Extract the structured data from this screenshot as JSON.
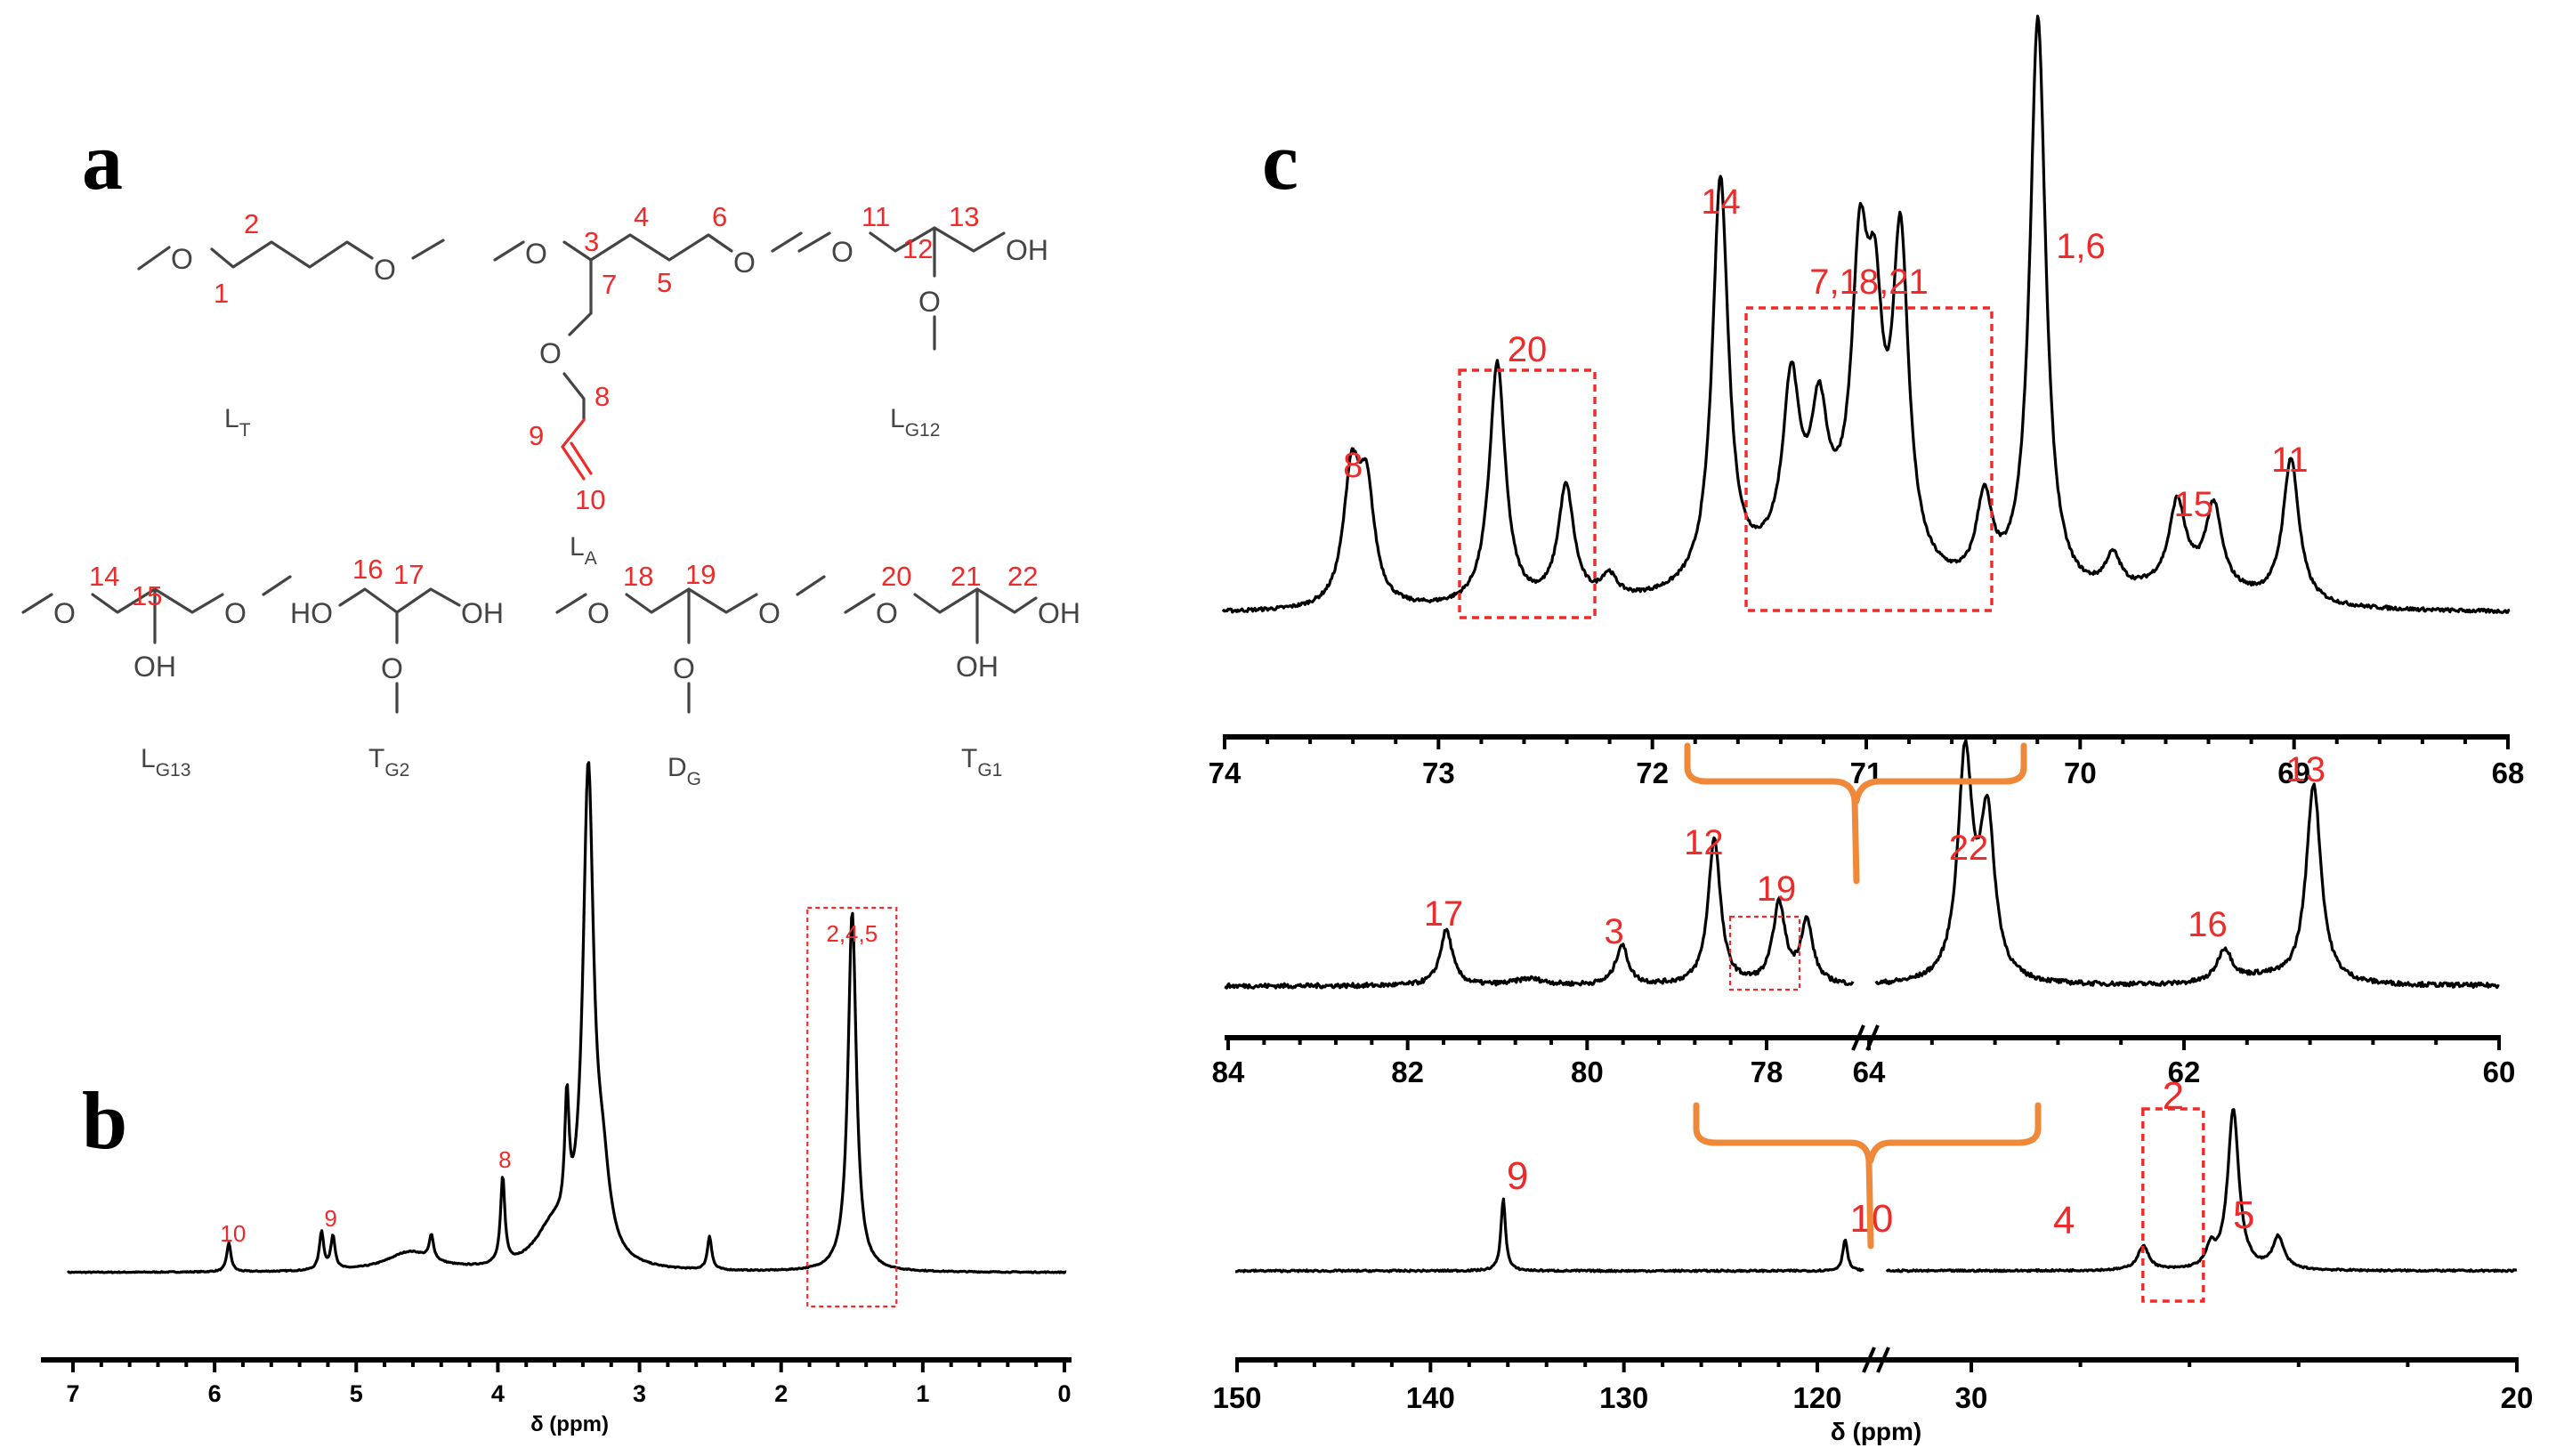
{
  "panels": {
    "a": {
      "letter": "a",
      "structures": [
        {
          "name": "L",
          "sub": "T",
          "numbers": [
            "1",
            "2"
          ]
        },
        {
          "name": "L",
          "sub": "A",
          "numbers": [
            "3",
            "4",
            "5",
            "6",
            "7",
            "8",
            "9",
            "10"
          ]
        },
        {
          "name": "L",
          "sub": "G12",
          "numbers": [
            "11",
            "12",
            "13"
          ]
        },
        {
          "name": "L",
          "sub": "G13",
          "numbers": [
            "14",
            "15"
          ]
        },
        {
          "name": "T",
          "sub": "G2",
          "numbers": [
            "16",
            "17"
          ]
        },
        {
          "name": "D",
          "sub": "G",
          "numbers": [
            "18",
            "19"
          ]
        },
        {
          "name": "T",
          "sub": "G1",
          "numbers": [
            "20",
            "21",
            "22"
          ]
        }
      ],
      "atoms": {
        "O": "O",
        "OH": "OH",
        "HO": "HO"
      }
    },
    "b": {
      "letter": "b",
      "x_ticks": [
        "7",
        "6",
        "5",
        "4",
        "3",
        "2",
        "1",
        "0"
      ],
      "xlabel": "δ (ppm)",
      "peak_labels": [
        "10",
        "9",
        "8",
        "2,4,5"
      ]
    },
    "c": {
      "letter": "c",
      "row1": {
        "x_ticks": [
          "74",
          "73",
          "72",
          "71",
          "70",
          "69",
          "68"
        ],
        "peak_labels": [
          "8",
          "20",
          "14",
          "7,18,21",
          "1,6",
          "15",
          "11"
        ]
      },
      "row2": {
        "x_ticks_left": [
          "84",
          "82",
          "80",
          "78"
        ],
        "x_ticks_right": [
          "64",
          "62",
          "60"
        ],
        "peak_labels": [
          "17",
          "3",
          "12",
          "19",
          "22",
          "16",
          "13"
        ]
      },
      "row3": {
        "x_ticks_left": [
          "150",
          "140",
          "130",
          "120"
        ],
        "x_ticks_right": [
          "30",
          "20"
        ],
        "peak_labels": [
          "9",
          "10",
          "4",
          "2",
          "5"
        ],
        "xlabel": "δ (ppm)"
      }
    }
  },
  "chart_data": [
    {
      "type": "line",
      "x_axis_reversed": true,
      "xlim": [
        7,
        0
      ],
      "xlabel": "δ (ppm)",
      "peaks": [
        {
          "ppm": 5.87,
          "rel_height": 0.06,
          "label": "10"
        },
        {
          "ppm": 5.22,
          "rel_height": 0.08,
          "label": "9"
        },
        {
          "ppm": 5.14,
          "rel_height": 0.07,
          "label": "9"
        },
        {
          "ppm": 4.45,
          "rel_height": 0.05,
          "label": ""
        },
        {
          "ppm": 3.95,
          "rel_height": 0.18,
          "label": "8"
        },
        {
          "ppm": 3.5,
          "rel_height": 0.25,
          "label": ""
        },
        {
          "ppm": 3.35,
          "rel_height": 1.0,
          "label": ""
        },
        {
          "ppm": 2.5,
          "rel_height": 0.07,
          "label": ""
        },
        {
          "ppm": 1.5,
          "rel_height": 0.75,
          "label": "2,4,5"
        }
      ]
    },
    {
      "type": "line",
      "x_axis_reversed": true,
      "xlim": [
        74,
        68
      ],
      "peaks": [
        {
          "ppm": 73.4,
          "rel_height": 0.22,
          "label": "8"
        },
        {
          "ppm": 73.33,
          "rel_height": 0.19,
          "label": ""
        },
        {
          "ppm": 72.72,
          "rel_height": 0.42,
          "label": "20"
        },
        {
          "ppm": 72.4,
          "rel_height": 0.2,
          "label": "20"
        },
        {
          "ppm": 72.2,
          "rel_height": 0.04,
          "label": ""
        },
        {
          "ppm": 71.68,
          "rel_height": 0.7,
          "label": "14"
        },
        {
          "ppm": 71.35,
          "rel_height": 0.28,
          "label": "7,18,21"
        },
        {
          "ppm": 71.22,
          "rel_height": 0.2,
          "label": "7,18,21"
        },
        {
          "ppm": 71.03,
          "rel_height": 0.45,
          "label": "7,18,21"
        },
        {
          "ppm": 70.96,
          "rel_height": 0.35,
          "label": "7,18,21"
        },
        {
          "ppm": 70.84,
          "rel_height": 0.55,
          "label": "7,18,21"
        },
        {
          "ppm": 70.45,
          "rel_height": 0.15,
          "label": ""
        },
        {
          "ppm": 70.2,
          "rel_height": 1.0,
          "label": "1,6"
        },
        {
          "ppm": 69.85,
          "rel_height": 0.06,
          "label": ""
        },
        {
          "ppm": 69.55,
          "rel_height": 0.14,
          "label": "15"
        },
        {
          "ppm": 69.38,
          "rel_height": 0.14,
          "label": "15"
        },
        {
          "ppm": 69.02,
          "rel_height": 0.25,
          "label": "11"
        }
      ]
    },
    {
      "type": "line",
      "x_axis_break": true,
      "xlim_left": [
        84,
        77
      ],
      "xlim_right": [
        64,
        60
      ],
      "peaks": [
        {
          "ppm": 81.6,
          "rel_height": 0.25,
          "label": "17"
        },
        {
          "ppm": 79.7,
          "rel_height": 0.18,
          "label": "3"
        },
        {
          "ppm": 78.7,
          "rel_height": 0.66,
          "label": "12"
        },
        {
          "ppm": 78.0,
          "rel_height": 0.36,
          "label": "19"
        },
        {
          "ppm": 77.7,
          "rel_height": 0.28,
          "label": "19"
        },
        {
          "ppm": 63.6,
          "rel_height": 1.0,
          "label": "22"
        },
        {
          "ppm": 63.45,
          "rel_height": 0.72,
          "label": "22"
        },
        {
          "ppm": 61.85,
          "rel_height": 0.15,
          "label": "16"
        },
        {
          "ppm": 61.25,
          "rel_height": 0.9,
          "label": "13"
        }
      ]
    },
    {
      "type": "line",
      "x_axis_break": true,
      "xlim_left": [
        150,
        116
      ],
      "xlim_right": [
        34,
        20
      ],
      "xlabel": "δ (ppm)",
      "peaks": [
        {
          "ppm": 135.5,
          "rel_height": 0.45,
          "label": "9"
        },
        {
          "ppm": 117.0,
          "rel_height": 0.2,
          "label": "10"
        },
        {
          "ppm": 28.3,
          "rel_height": 0.15,
          "label": "4"
        },
        {
          "ppm": 26.3,
          "rel_height": 1.0,
          "label": "2"
        },
        {
          "ppm": 25.3,
          "rel_height": 0.2,
          "label": "5"
        }
      ]
    }
  ]
}
